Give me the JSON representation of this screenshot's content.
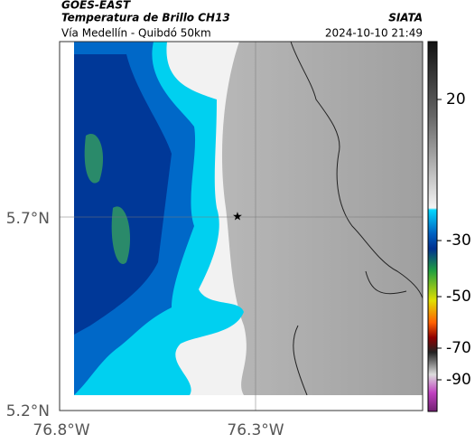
{
  "header": {
    "product": "GOES-EAST",
    "title": "Temperatura de Brillo CH13",
    "subtitle": "Vía Medellín - Quibdó 50km",
    "source": "SIATA",
    "datetime": "2024-10-10 21:49"
  },
  "axes": {
    "y_labels": [
      "5.7°N",
      "5.2°N"
    ],
    "x_labels": [
      "76.8°W",
      "76.3°W"
    ]
  },
  "colorbar": {
    "ticks": [
      20,
      -30,
      -50,
      -70,
      -90
    ]
  }
}
